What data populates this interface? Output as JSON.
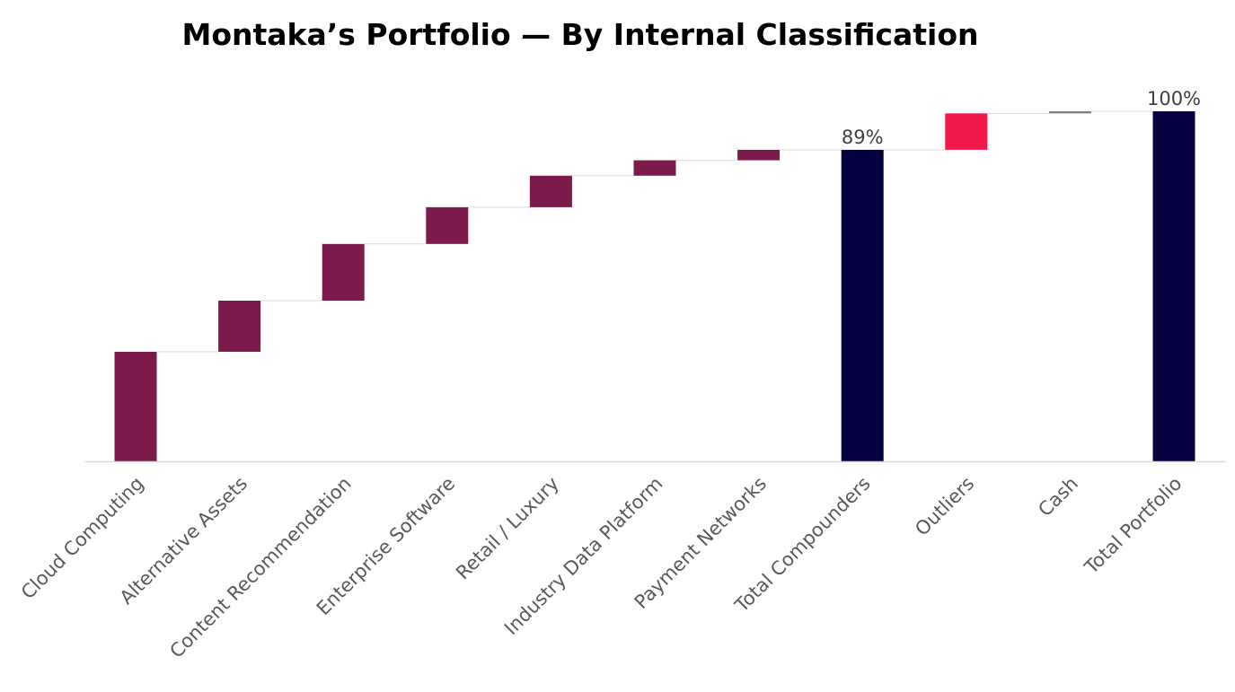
{
  "chart_data": {
    "type": "waterfall",
    "title": "Montaka’s Portfolio — By Internal Classification",
    "xlabel": "",
    "ylabel": "",
    "ylim": [
      0,
      100
    ],
    "grid": false,
    "legend": "none",
    "unit": "%",
    "categories": [
      "Cloud Computing",
      "Alternative Assets",
      "Content Recommendation",
      "Enterprise Software",
      "Retail / Luxury",
      "Industry Data Platform",
      "Payment Networks",
      "Total Compounders",
      "Outliers",
      "Cash",
      "Total Portfolio"
    ],
    "values": [
      31.3,
      14.6,
      16.2,
      10.5,
      9.0,
      4.4,
      3.0,
      89,
      10.4,
      0.6,
      100
    ],
    "kinds": [
      "step",
      "step",
      "step",
      "step",
      "step",
      "step",
      "step",
      "total",
      "step",
      "step",
      "total"
    ],
    "data_labels": [
      "",
      "",
      "",
      "",
      "",
      "",
      "",
      "89%",
      "",
      "",
      "100%"
    ],
    "colors": {
      "compounder": "#7B1A4B",
      "total": "#05003F",
      "outliers": "#F0194A",
      "cash": "#7F7F7F"
    },
    "bar_colors": [
      "compounder",
      "compounder",
      "compounder",
      "compounder",
      "compounder",
      "compounder",
      "compounder",
      "total",
      "outliers",
      "cash",
      "total"
    ]
  }
}
